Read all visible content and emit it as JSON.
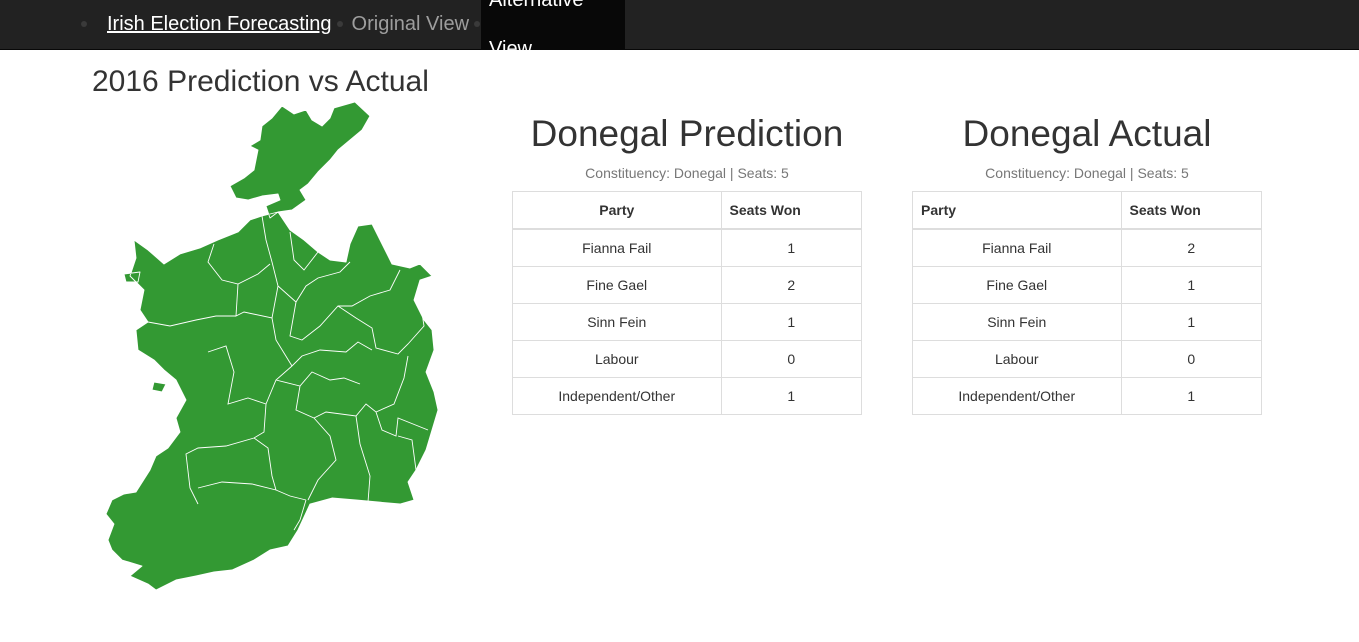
{
  "nav": {
    "brand": "Irish Election Forecasting",
    "original": "Original View",
    "alternative": "Alternative View"
  },
  "page": {
    "title": "2016 Prediction vs Actual"
  },
  "map": {
    "fill_color": "#339933",
    "border_color": "#ffffff"
  },
  "prediction": {
    "title": "Donegal Prediction",
    "subtitle": "Constituency: Donegal | Seats: 5",
    "headers": [
      "Party",
      "Seats Won"
    ],
    "rows": [
      {
        "party": "Fianna Fail",
        "seats": "1"
      },
      {
        "party": "Fine Gael",
        "seats": "2"
      },
      {
        "party": "Sinn Fein",
        "seats": "1"
      },
      {
        "party": "Labour",
        "seats": "0"
      },
      {
        "party": "Independent/Other",
        "seats": "1"
      }
    ]
  },
  "actual": {
    "title": "Donegal Actual",
    "subtitle": "Constituency: Donegal | Seats: 5",
    "headers": [
      "Party",
      "Seats Won"
    ],
    "rows": [
      {
        "party": "Fianna Fail",
        "seats": "2"
      },
      {
        "party": "Fine Gael",
        "seats": "1"
      },
      {
        "party": "Sinn Fein",
        "seats": "1"
      },
      {
        "party": "Labour",
        "seats": "0"
      },
      {
        "party": "Independent/Other",
        "seats": "1"
      }
    ]
  }
}
